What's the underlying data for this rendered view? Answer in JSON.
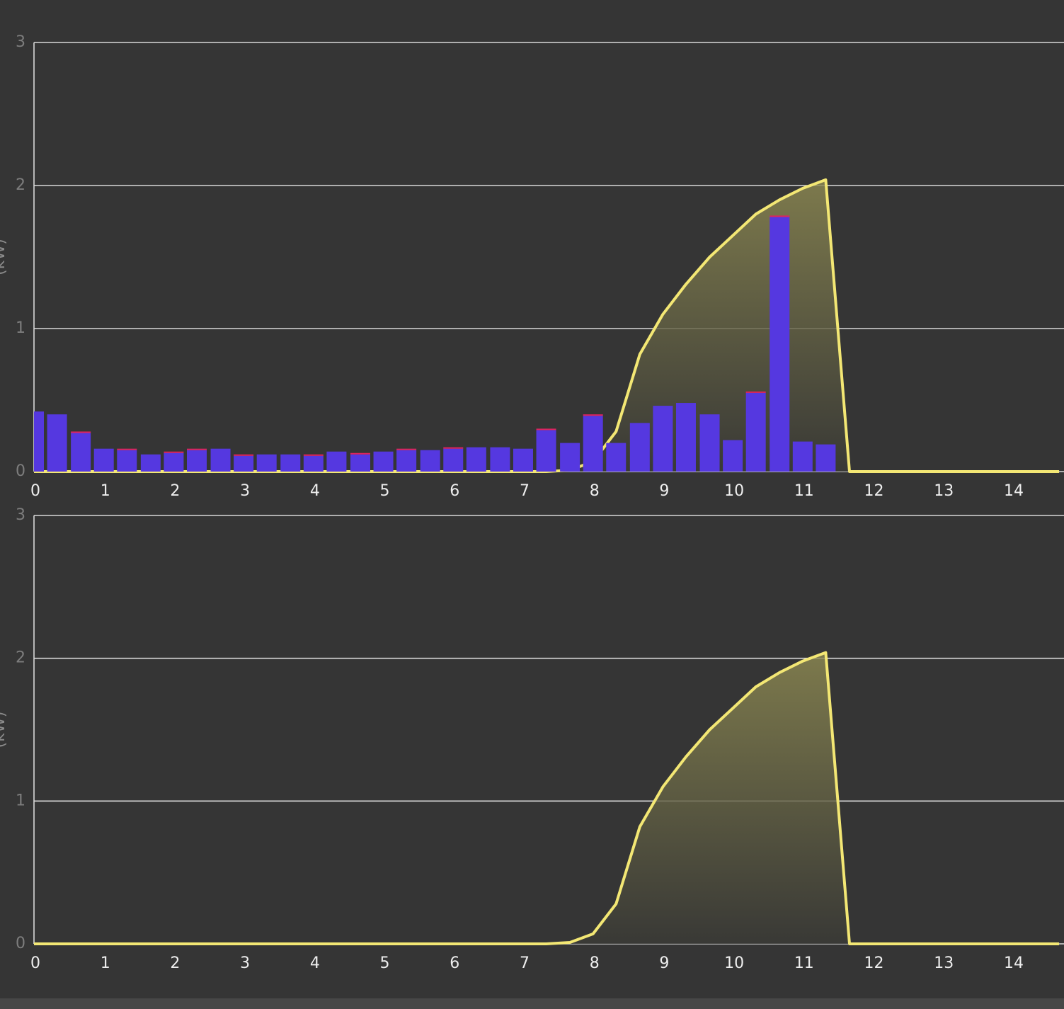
{
  "chart_data": [
    {
      "type": "bar-area",
      "y_label": "(kW)",
      "x": [
        0,
        0.33,
        0.67,
        1,
        1.33,
        1.67,
        2,
        2.33,
        2.67,
        3,
        3.33,
        3.67,
        4,
        4.33,
        4.67,
        5,
        5.33,
        5.67,
        6,
        6.33,
        6.67,
        7,
        7.33,
        7.67,
        8,
        8.33,
        8.67,
        9,
        9.33,
        9.67,
        10,
        10.33,
        10.67,
        11,
        11.33,
        11.67,
        12,
        12.33,
        12.67,
        13,
        13.33,
        13.67,
        14,
        14.33,
        14.67
      ],
      "series": [
        {
          "type": "bar",
          "color": "#5538e0",
          "values": [
            0.42,
            0.4,
            0.27,
            0.16,
            0.15,
            0.12,
            0.13,
            0.15,
            0.16,
            0.11,
            0.12,
            0.12,
            0.11,
            0.14,
            0.12,
            0.14,
            0.15,
            0.15,
            0.16,
            0.17,
            0.17,
            0.16,
            0.29,
            0.2,
            0.39,
            0.2,
            0.34,
            0.46,
            0.48,
            0.4,
            0.22,
            0.55,
            1.78,
            0.21,
            0.19,
            null,
            null,
            null,
            null,
            null,
            null,
            null,
            null,
            null,
            null
          ]
        },
        {
          "type": "bar",
          "color": "#e0245e",
          "values": [
            0,
            0,
            0.01,
            0,
            0.01,
            0,
            0.01,
            0.01,
            0,
            0.01,
            0,
            0,
            0.01,
            0,
            0.01,
            0,
            0.01,
            0,
            0.01,
            0,
            0,
            0,
            0.01,
            0,
            0.01,
            0,
            0,
            0,
            0,
            0,
            0,
            0.01,
            0.01,
            0,
            0,
            null,
            null,
            null,
            null,
            null,
            null,
            null,
            null,
            null,
            null
          ]
        },
        {
          "type": "area",
          "color": "#f3e774",
          "values": [
            0,
            0,
            0,
            0,
            0,
            0,
            0,
            0,
            0,
            0,
            0,
            0,
            0,
            0,
            0,
            0,
            0,
            0,
            0,
            0,
            0,
            0,
            0,
            0.01,
            0.07,
            0.28,
            0.82,
            1.1,
            1.31,
            1.5,
            1.65,
            1.8,
            1.9,
            1.98,
            2.04,
            0,
            0,
            0,
            0,
            0,
            0,
            0,
            0,
            0,
            0
          ]
        }
      ],
      "xlim": [
        0,
        14.74
      ],
      "xticks": [
        0,
        1,
        2,
        3,
        4,
        5,
        6,
        7,
        8,
        9,
        10,
        11,
        12,
        13,
        14
      ],
      "ylim": [
        0,
        3
      ],
      "yticks": [
        0,
        1,
        2,
        3
      ],
      "grid": true
    },
    {
      "type": "area",
      "y_label": "(kW)",
      "x": [
        0,
        0.33,
        0.67,
        1,
        1.33,
        1.67,
        2,
        2.33,
        2.67,
        3,
        3.33,
        3.67,
        4,
        4.33,
        4.67,
        5,
        5.33,
        5.67,
        6,
        6.33,
        6.67,
        7,
        7.33,
        7.67,
        8,
        8.33,
        8.67,
        9,
        9.33,
        9.67,
        10,
        10.33,
        10.67,
        11,
        11.33,
        11.67,
        12,
        12.33,
        12.67,
        13,
        13.33,
        13.67,
        14,
        14.33,
        14.67
      ],
      "series": [
        {
          "type": "area",
          "color": "#f3e774",
          "values": [
            0,
            0,
            0,
            0,
            0,
            0,
            0,
            0,
            0,
            0,
            0,
            0,
            0,
            0,
            0,
            0,
            0,
            0,
            0,
            0,
            0,
            0,
            0,
            0.01,
            0.07,
            0.28,
            0.82,
            1.1,
            1.31,
            1.5,
            1.65,
            1.8,
            1.9,
            1.98,
            2.04,
            0,
            0,
            0,
            0,
            0,
            0,
            0,
            0,
            0,
            0
          ]
        }
      ],
      "xlim": [
        0,
        14.74
      ],
      "xticks": [
        0,
        1,
        2,
        3,
        4,
        5,
        6,
        7,
        8,
        9,
        10,
        11,
        12,
        13,
        14
      ],
      "ylim": [
        0,
        3
      ],
      "yticks": [
        0,
        1,
        2,
        3
      ],
      "grid": true
    }
  ]
}
